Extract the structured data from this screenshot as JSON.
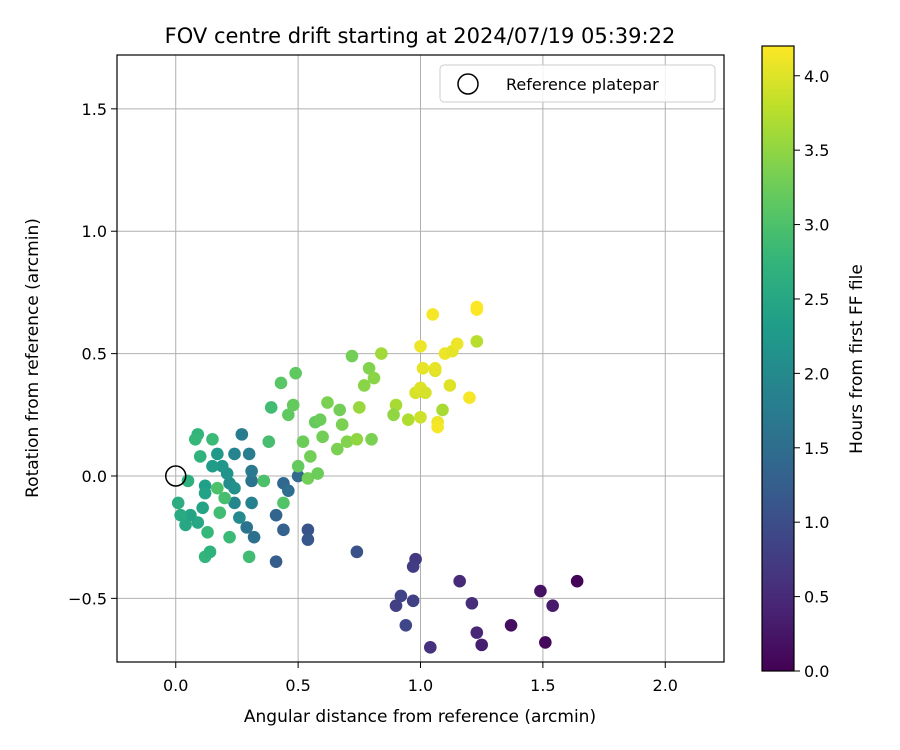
{
  "chart_data": {
    "type": "scatter",
    "title": "FOV centre drift starting at 2024/07/19 05:39:22",
    "xlabel": "Angular distance from reference (arcmin)",
    "ylabel": "Rotation from reference (arcmin)",
    "xlim": [
      -0.24,
      2.24
    ],
    "ylim": [
      -0.76,
      1.72
    ],
    "xticks": [
      0.0,
      0.5,
      1.0,
      1.5,
      2.0
    ],
    "xtick_labels": [
      "0.0",
      "0.5",
      "1.0",
      "1.5",
      "2.0"
    ],
    "yticks": [
      -0.5,
      0.0,
      0.5,
      1.0,
      1.5
    ],
    "ytick_labels": [
      "−0.5",
      "0.0",
      "0.5",
      "1.0",
      "1.5"
    ],
    "grid": true,
    "legend": {
      "position": "top-right",
      "entries": [
        "Reference platepar"
      ]
    },
    "reference_point": {
      "x": 0.0,
      "y": 0.0,
      "marker": "hollow-circle"
    },
    "colorbar": {
      "label": "Hours from first FF file",
      "colormap": "viridis",
      "range": [
        0.0,
        4.2
      ],
      "ticks": [
        0.0,
        0.5,
        1.0,
        1.5,
        2.0,
        2.5,
        3.0,
        3.5,
        4.0
      ],
      "tick_labels": [
        "0.0",
        "0.5",
        "1.0",
        "1.5",
        "2.0",
        "2.5",
        "3.0",
        "3.5",
        "4.0"
      ]
    },
    "points": [
      {
        "x": 1.64,
        "y": -0.43,
        "c": 0.05
      },
      {
        "x": 1.51,
        "y": -0.68,
        "c": 0.1
      },
      {
        "x": 1.49,
        "y": -0.47,
        "c": 0.2
      },
      {
        "x": 1.54,
        "y": -0.53,
        "c": 0.3
      },
      {
        "x": 1.37,
        "y": -0.61,
        "c": 0.15
      },
      {
        "x": 1.25,
        "y": -0.69,
        "c": 0.35
      },
      {
        "x": 1.23,
        "y": -0.64,
        "c": 0.45
      },
      {
        "x": 1.21,
        "y": -0.52,
        "c": 0.55
      },
      {
        "x": 1.16,
        "y": -0.43,
        "c": 0.5
      },
      {
        "x": 1.04,
        "y": -0.7,
        "c": 0.6
      },
      {
        "x": 0.98,
        "y": -0.34,
        "c": 0.7
      },
      {
        "x": 0.97,
        "y": -0.37,
        "c": 0.75
      },
      {
        "x": 0.97,
        "y": -0.51,
        "c": 0.8
      },
      {
        "x": 0.92,
        "y": -0.49,
        "c": 0.85
      },
      {
        "x": 0.94,
        "y": -0.61,
        "c": 0.9
      },
      {
        "x": 0.9,
        "y": -0.53,
        "c": 0.8
      },
      {
        "x": 0.74,
        "y": -0.31,
        "c": 1.05
      },
      {
        "x": 0.54,
        "y": -0.22,
        "c": 1.1
      },
      {
        "x": 0.54,
        "y": -0.26,
        "c": 1.15
      },
      {
        "x": 0.41,
        "y": -0.35,
        "c": 1.25
      },
      {
        "x": 0.44,
        "y": -0.22,
        "c": 1.3
      },
      {
        "x": 0.41,
        "y": -0.16,
        "c": 1.35
      },
      {
        "x": 0.44,
        "y": -0.03,
        "c": 1.4
      },
      {
        "x": 0.5,
        "y": 0.0,
        "c": 1.45
      },
      {
        "x": 0.46,
        "y": -0.06,
        "c": 1.5
      },
      {
        "x": 0.32,
        "y": -0.25,
        "c": 1.55
      },
      {
        "x": 0.29,
        "y": -0.21,
        "c": 1.6
      },
      {
        "x": 0.31,
        "y": -0.02,
        "c": 1.6
      },
      {
        "x": 0.31,
        "y": 0.02,
        "c": 1.7
      },
      {
        "x": 0.27,
        "y": 0.17,
        "c": 1.75
      },
      {
        "x": 0.3,
        "y": 0.09,
        "c": 1.8
      },
      {
        "x": 0.24,
        "y": 0.09,
        "c": 1.9
      },
      {
        "x": 0.31,
        "y": -0.11,
        "c": 1.85
      },
      {
        "x": 0.26,
        "y": -0.17,
        "c": 2.0
      },
      {
        "x": 0.24,
        "y": -0.11,
        "c": 1.95
      },
      {
        "x": 0.22,
        "y": -0.03,
        "c": 2.05
      },
      {
        "x": 0.24,
        "y": -0.05,
        "c": 2.1
      },
      {
        "x": 0.21,
        "y": 0.01,
        "c": 2.15
      },
      {
        "x": 0.19,
        "y": 0.04,
        "c": 2.2
      },
      {
        "x": 0.17,
        "y": 0.09,
        "c": 2.25
      },
      {
        "x": 0.15,
        "y": 0.04,
        "c": 2.3
      },
      {
        "x": 0.12,
        "y": -0.04,
        "c": 2.35
      },
      {
        "x": 0.12,
        "y": -0.07,
        "c": 2.4
      },
      {
        "x": 0.11,
        "y": -0.13,
        "c": 2.45
      },
      {
        "x": 0.09,
        "y": -0.19,
        "c": 2.5
      },
      {
        "x": 0.06,
        "y": -0.16,
        "c": 2.45
      },
      {
        "x": 0.04,
        "y": -0.2,
        "c": 2.5
      },
      {
        "x": 0.02,
        "y": -0.16,
        "c": 2.55
      },
      {
        "x": 0.01,
        "y": -0.11,
        "c": 2.6
      },
      {
        "x": 0.05,
        "y": -0.02,
        "c": 2.65
      },
      {
        "x": 0.1,
        "y": 0.08,
        "c": 2.7
      },
      {
        "x": 0.09,
        "y": 0.17,
        "c": 2.75
      },
      {
        "x": 0.08,
        "y": 0.15,
        "c": 2.8
      },
      {
        "x": 0.15,
        "y": 0.15,
        "c": 2.85
      },
      {
        "x": 0.12,
        "y": -0.33,
        "c": 2.75
      },
      {
        "x": 0.14,
        "y": -0.31,
        "c": 2.7
      },
      {
        "x": 0.13,
        "y": -0.23,
        "c": 2.8
      },
      {
        "x": 0.18,
        "y": -0.15,
        "c": 2.9
      },
      {
        "x": 0.22,
        "y": -0.25,
        "c": 2.85
      },
      {
        "x": 0.3,
        "y": -0.33,
        "c": 2.9
      },
      {
        "x": 0.2,
        "y": -0.09,
        "c": 2.95
      },
      {
        "x": 0.17,
        "y": -0.05,
        "c": 3.0
      },
      {
        "x": 0.36,
        "y": -0.02,
        "c": 3.0
      },
      {
        "x": 0.38,
        "y": 0.14,
        "c": 2.95
      },
      {
        "x": 0.39,
        "y": 0.28,
        "c": 2.9
      },
      {
        "x": 0.43,
        "y": 0.38,
        "c": 3.1
      },
      {
        "x": 0.44,
        "y": -0.11,
        "c": 3.05
      },
      {
        "x": 0.46,
        "y": 0.25,
        "c": 3.15
      },
      {
        "x": 0.48,
        "y": 0.29,
        "c": 3.2
      },
      {
        "x": 0.49,
        "y": 0.42,
        "c": 3.15
      },
      {
        "x": 0.5,
        "y": 0.04,
        "c": 3.2
      },
      {
        "x": 0.52,
        "y": 0.14,
        "c": 3.25
      },
      {
        "x": 0.55,
        "y": 0.08,
        "c": 3.3
      },
      {
        "x": 0.54,
        "y": -0.01,
        "c": 3.3
      },
      {
        "x": 0.58,
        "y": 0.01,
        "c": 3.25
      },
      {
        "x": 0.57,
        "y": 0.22,
        "c": 3.2
      },
      {
        "x": 0.59,
        "y": 0.23,
        "c": 3.25
      },
      {
        "x": 0.6,
        "y": 0.16,
        "c": 3.3
      },
      {
        "x": 0.62,
        "y": 0.3,
        "c": 3.35
      },
      {
        "x": 0.66,
        "y": 0.11,
        "c": 3.35
      },
      {
        "x": 0.67,
        "y": 0.27,
        "c": 3.3
      },
      {
        "x": 0.68,
        "y": 0.21,
        "c": 3.35
      },
      {
        "x": 0.7,
        "y": 0.14,
        "c": 3.4
      },
      {
        "x": 0.72,
        "y": 0.49,
        "c": 3.3
      },
      {
        "x": 0.74,
        "y": 0.15,
        "c": 3.5
      },
      {
        "x": 0.75,
        "y": 0.28,
        "c": 3.55
      },
      {
        "x": 0.77,
        "y": 0.37,
        "c": 3.45
      },
      {
        "x": 0.79,
        "y": 0.44,
        "c": 3.4
      },
      {
        "x": 0.8,
        "y": 0.15,
        "c": 3.35
      },
      {
        "x": 0.81,
        "y": 0.4,
        "c": 3.45
      },
      {
        "x": 0.84,
        "y": 0.5,
        "c": 3.6
      },
      {
        "x": 0.9,
        "y": 0.29,
        "c": 3.65
      },
      {
        "x": 0.89,
        "y": 0.25,
        "c": 3.5
      },
      {
        "x": 0.95,
        "y": 0.23,
        "c": 3.7
      },
      {
        "x": 1.0,
        "y": 0.24,
        "c": 3.9
      },
      {
        "x": 0.98,
        "y": 0.34,
        "c": 3.95
      },
      {
        "x": 1.0,
        "y": 0.36,
        "c": 4.0
      },
      {
        "x": 1.02,
        "y": 0.34,
        "c": 3.95
      },
      {
        "x": 1.01,
        "y": 0.44,
        "c": 4.05
      },
      {
        "x": 1.0,
        "y": 0.53,
        "c": 4.1
      },
      {
        "x": 1.05,
        "y": 0.66,
        "c": 4.15
      },
      {
        "x": 1.06,
        "y": 0.43,
        "c": 4.0
      },
      {
        "x": 1.06,
        "y": 0.44,
        "c": 4.05
      },
      {
        "x": 1.07,
        "y": 0.22,
        "c": 4.1
      },
      {
        "x": 1.07,
        "y": 0.2,
        "c": 4.15
      },
      {
        "x": 1.09,
        "y": 0.27,
        "c": 3.65
      },
      {
        "x": 1.1,
        "y": 0.5,
        "c": 4.1
      },
      {
        "x": 1.12,
        "y": 0.37,
        "c": 4.0
      },
      {
        "x": 1.13,
        "y": 0.51,
        "c": 4.05
      },
      {
        "x": 1.15,
        "y": 0.54,
        "c": 4.1
      },
      {
        "x": 1.2,
        "y": 0.32,
        "c": 4.15
      },
      {
        "x": 1.23,
        "y": 0.69,
        "c": 4.18
      },
      {
        "x": 1.23,
        "y": 0.68,
        "c": 4.2
      },
      {
        "x": 1.23,
        "y": 0.55,
        "c": 3.75
      }
    ]
  }
}
